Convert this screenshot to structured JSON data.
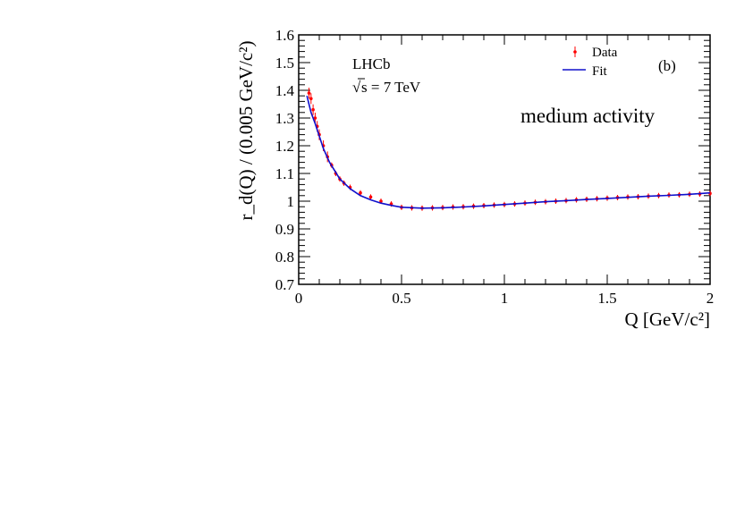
{
  "chart_data": {
    "type": "scatter",
    "experiment": "LHCb",
    "energy_label": "s = 7 TeV",
    "energy_sqrt_symbol": "√",
    "panel_label": "(b)",
    "annotation": "medium activity",
    "xlabel": "Q [GeV/c²]",
    "ylabel": "r_d(Q) / (0.005 GeV/c²)",
    "xlim": [
      0,
      2
    ],
    "ylim": [
      0.7,
      1.6
    ],
    "x_ticks": [
      "0",
      "0.5",
      "1",
      "1.5",
      "2"
    ],
    "y_ticks": [
      "0.7",
      "0.8",
      "0.9",
      "1",
      "1.1",
      "1.2",
      "1.3",
      "1.4",
      "1.5",
      "1.6"
    ],
    "legend_position": "top-right",
    "series": [
      {
        "name": "Data",
        "color": "#ff0000",
        "points": [
          [
            0.05,
            1.39
          ],
          [
            0.06,
            1.37
          ],
          [
            0.07,
            1.33
          ],
          [
            0.08,
            1.3
          ],
          [
            0.09,
            1.27
          ],
          [
            0.1,
            1.24
          ],
          [
            0.12,
            1.2
          ],
          [
            0.14,
            1.16
          ],
          [
            0.16,
            1.13
          ],
          [
            0.18,
            1.1
          ],
          [
            0.2,
            1.08
          ],
          [
            0.22,
            1.065
          ],
          [
            0.25,
            1.05
          ],
          [
            0.3,
            1.03
          ],
          [
            0.35,
            1.015
          ],
          [
            0.4,
            1.0
          ],
          [
            0.45,
            0.99
          ],
          [
            0.5,
            0.978
          ],
          [
            0.55,
            0.976
          ],
          [
            0.6,
            0.975
          ],
          [
            0.65,
            0.976
          ],
          [
            0.7,
            0.977
          ],
          [
            0.75,
            0.979
          ],
          [
            0.8,
            0.98
          ],
          [
            0.85,
            0.982
          ],
          [
            0.9,
            0.984
          ],
          [
            0.95,
            0.986
          ],
          [
            1.0,
            0.988
          ],
          [
            1.05,
            0.99
          ],
          [
            1.1,
            0.993
          ],
          [
            1.15,
            0.996
          ],
          [
            1.2,
            0.998
          ],
          [
            1.25,
            1.0
          ],
          [
            1.3,
            1.002
          ],
          [
            1.35,
            1.005
          ],
          [
            1.4,
            1.007
          ],
          [
            1.45,
            1.009
          ],
          [
            1.5,
            1.011
          ],
          [
            1.55,
            1.013
          ],
          [
            1.6,
            1.015
          ],
          [
            1.65,
            1.016
          ],
          [
            1.7,
            1.018
          ],
          [
            1.75,
            1.02
          ],
          [
            1.8,
            1.022
          ],
          [
            1.85,
            1.023
          ],
          [
            1.9,
            1.025
          ],
          [
            1.95,
            1.026
          ],
          [
            2.0,
            1.028
          ]
        ]
      },
      {
        "name": "Fit",
        "color": "#1010cc",
        "points": [
          [
            0.04,
            1.38
          ],
          [
            0.05,
            1.35
          ],
          [
            0.06,
            1.32
          ],
          [
            0.08,
            1.28
          ],
          [
            0.1,
            1.235
          ],
          [
            0.12,
            1.19
          ],
          [
            0.15,
            1.14
          ],
          [
            0.2,
            1.08
          ],
          [
            0.25,
            1.045
          ],
          [
            0.3,
            1.02
          ],
          [
            0.35,
            1.005
          ],
          [
            0.4,
            0.993
          ],
          [
            0.45,
            0.985
          ],
          [
            0.5,
            0.978
          ],
          [
            0.6,
            0.975
          ],
          [
            0.7,
            0.976
          ],
          [
            0.8,
            0.979
          ],
          [
            0.9,
            0.983
          ],
          [
            1.0,
            0.988
          ],
          [
            1.1,
            0.993
          ],
          [
            1.2,
            0.998
          ],
          [
            1.3,
            1.002
          ],
          [
            1.4,
            1.006
          ],
          [
            1.5,
            1.01
          ],
          [
            1.6,
            1.014
          ],
          [
            1.7,
            1.018
          ],
          [
            1.8,
            1.021
          ],
          [
            1.9,
            1.025
          ],
          [
            2.0,
            1.03
          ]
        ]
      }
    ]
  }
}
